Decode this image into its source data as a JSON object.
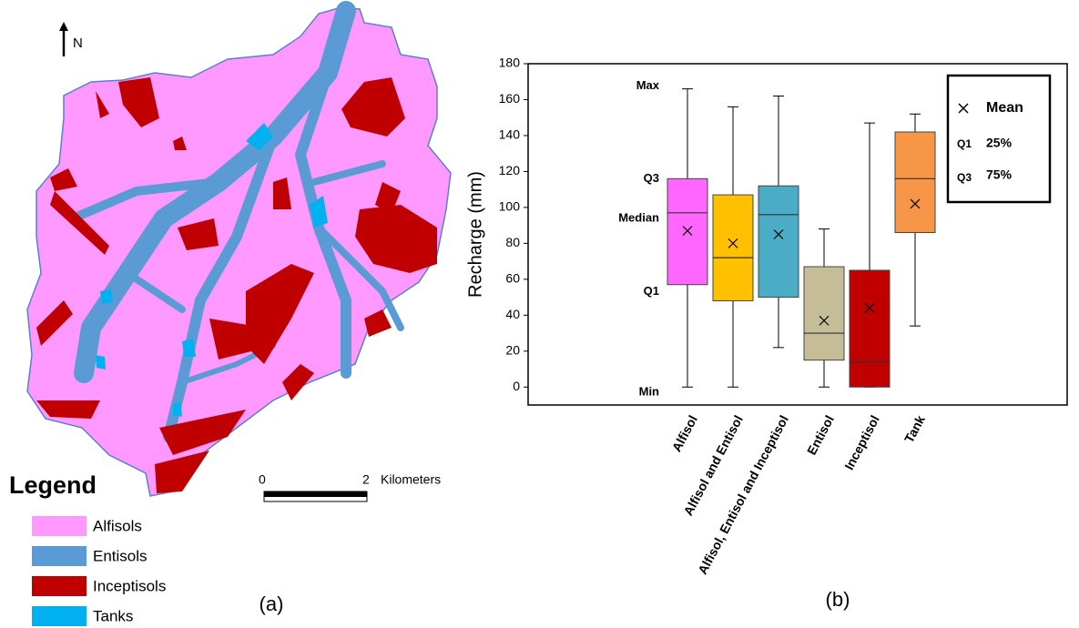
{
  "map": {
    "north": "N",
    "scale": {
      "start": "0",
      "end": "2",
      "unit": "Kilometers"
    },
    "legend_title": "Legend",
    "legend": [
      {
        "label": "Alfisols",
        "color": "#ff99ff"
      },
      {
        "label": "Entisols",
        "color": "#5b9bd5"
      },
      {
        "label": "Inceptisols",
        "color": "#c00000"
      },
      {
        "label": "Tanks",
        "color": "#00b0f0"
      }
    ],
    "panel_label": "(a)"
  },
  "chart_data": {
    "type": "box",
    "y_label": "Recharge (mm)",
    "ylim": [
      -10,
      180
    ],
    "yticks": [
      0,
      20,
      40,
      60,
      80,
      100,
      120,
      140,
      160,
      180
    ],
    "categories": [
      "Alfisol",
      "Alfisol and Entisol",
      "Alfisol, Entisol and Inceptisol",
      "Entisol",
      "Inceptisol",
      "Tank"
    ],
    "boxes": [
      {
        "min": 0,
        "q1": 57,
        "median": 97,
        "q3": 116,
        "max": 166,
        "mean": 87,
        "color": "#ff66ff"
      },
      {
        "min": 0,
        "q1": 48,
        "median": 72,
        "q3": 107,
        "max": 156,
        "mean": 80,
        "color": "#ffc000"
      },
      {
        "min": 22,
        "q1": 50,
        "median": 96,
        "q3": 112,
        "max": 162,
        "mean": 85,
        "color": "#4bacc6"
      },
      {
        "min": 0,
        "q1": 15,
        "median": 30,
        "q3": 67,
        "max": 88,
        "mean": 37,
        "color": "#c4bd97"
      },
      {
        "min": 0,
        "q1": 0,
        "median": 14,
        "q3": 65,
        "max": 147,
        "mean": 44,
        "color": "#c00000"
      },
      {
        "min": 34,
        "q1": 86,
        "median": 116,
        "q3": 142,
        "max": 152,
        "mean": 102,
        "color": "#f79646"
      }
    ],
    "annotations": {
      "max": "Max",
      "q3": "Q3",
      "median": "Median",
      "q1": "Q1",
      "min": "Min"
    },
    "key": {
      "mean": "Mean",
      "q1": "Q1",
      "q1_text": "25%",
      "q3": "Q3",
      "q3_text": "75%"
    },
    "panel_label": "(b)"
  }
}
